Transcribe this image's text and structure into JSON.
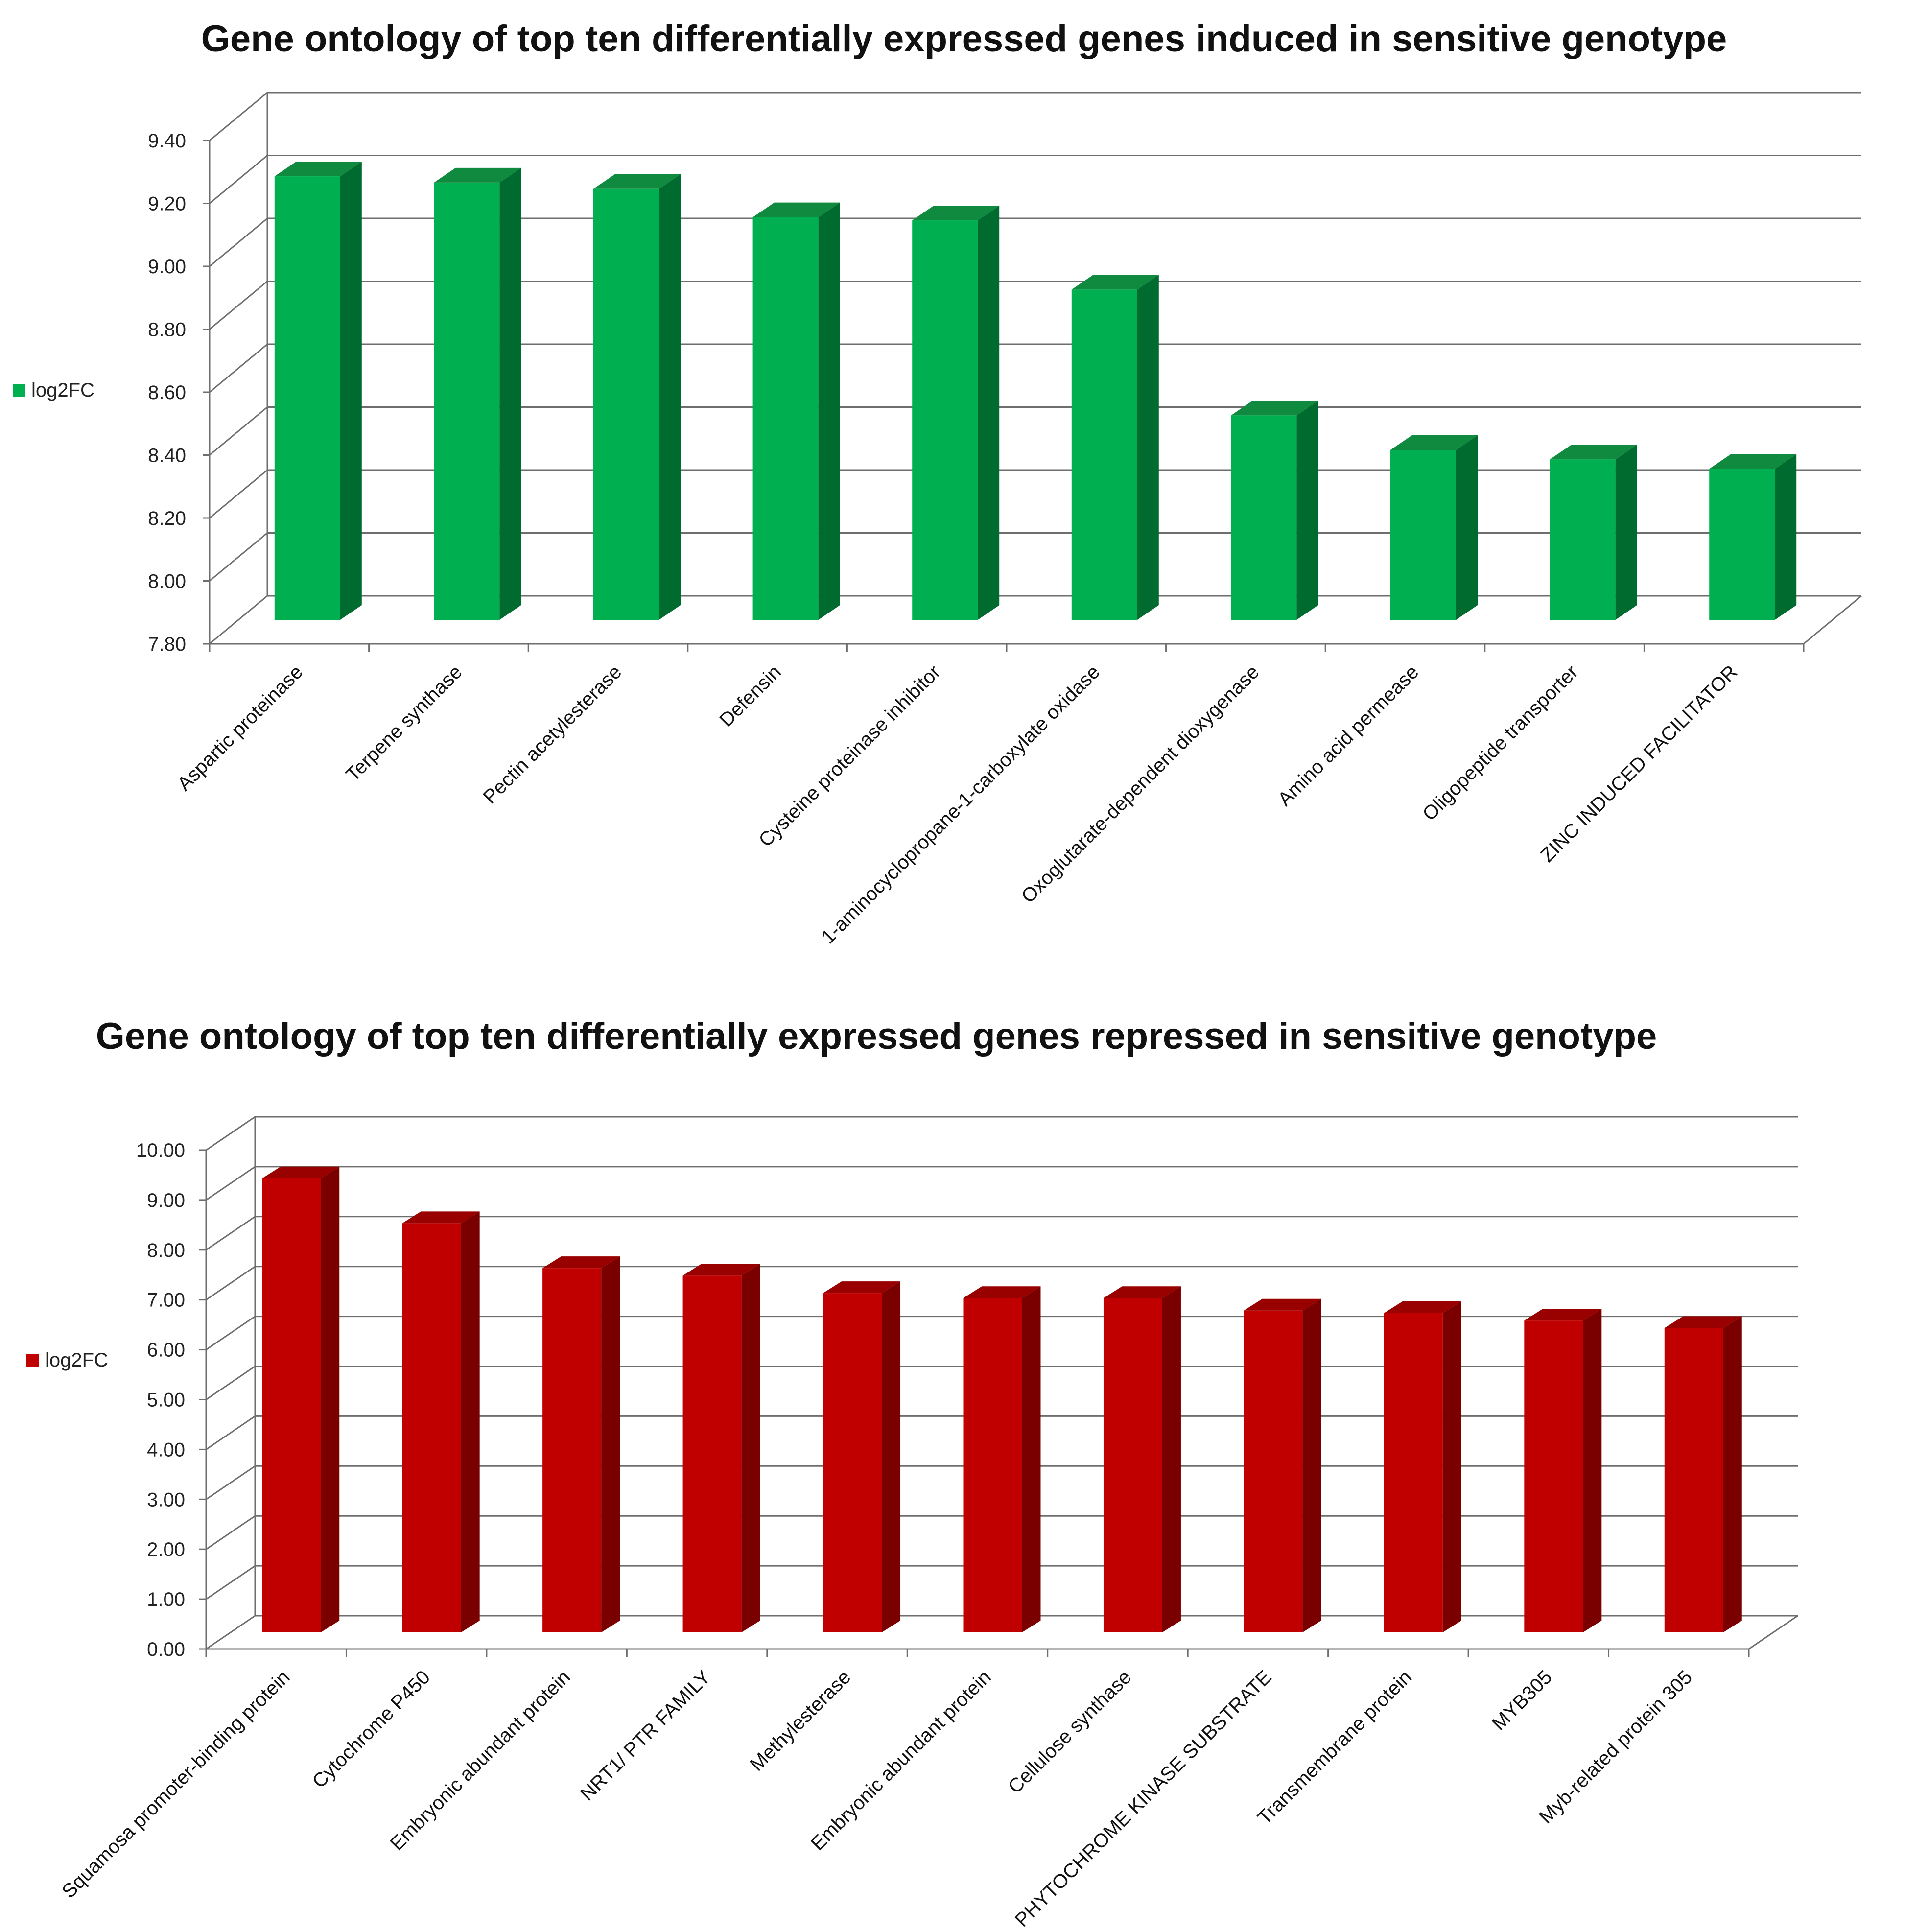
{
  "chart_data": [
    {
      "type": "bar",
      "title": "Gene ontology of top ten differentially expressed genes induced in sensitive genotype",
      "categories": [
        "Aspartic proteinase",
        "Terpene synthase",
        "Pectin acetylesterase",
        "Defensin",
        "Cysteine proteinase inhibitor",
        "1-aminocyclopropane-1-carboxylate oxidase",
        "Oxoglutarate-dependent dioxygenase",
        "Amino acid permease",
        "Oligopeptide transporter",
        "ZINC INDUCED FACILITATOR"
      ],
      "series": [
        {
          "name": "log2FC",
          "values": [
            9.21,
            9.19,
            9.17,
            9.08,
            9.07,
            8.85,
            8.45,
            8.34,
            8.31,
            8.28
          ]
        }
      ],
      "yticks": [
        "7.80",
        "8.00",
        "8.20",
        "8.40",
        "8.60",
        "8.80",
        "9.00",
        "9.20",
        "9.40"
      ],
      "ylim": [
        7.8,
        9.4
      ],
      "color": "#00b050",
      "color_side": "#006b2f",
      "color_top": "#108a3e",
      "legend": "left",
      "grid": true
    },
    {
      "type": "bar",
      "title": "Gene ontology of top ten differentially expressed genes repressed in sensitive genotype",
      "categories": [
        "Squamosa promoter-binding protein",
        "Cytochrome P450",
        "Embryonic abundant protein",
        "NRT1/ PTR FAMILY",
        "Methylesterase",
        "Embryonic abundant protein",
        "Cellulose synthase",
        "PHYTOCHROME KINASE SUBSTRATE",
        "Transmembrane protein",
        "MYB305",
        "Myb-related protein 305"
      ],
      "series": [
        {
          "name": "log2FC",
          "values": [
            9.1,
            8.2,
            7.3,
            7.15,
            6.8,
            6.7,
            6.7,
            6.45,
            6.4,
            6.25,
            6.1
          ]
        }
      ],
      "yticks": [
        "0.00",
        "1.00",
        "2.00",
        "3.00",
        "4.00",
        "5.00",
        "6.00",
        "7.00",
        "8.00",
        "9.00",
        "10.00"
      ],
      "ylim": [
        0,
        10
      ],
      "color": "#c00000",
      "color_side": "#7a0000",
      "color_top": "#990000",
      "legend": "left",
      "grid": true
    }
  ]
}
